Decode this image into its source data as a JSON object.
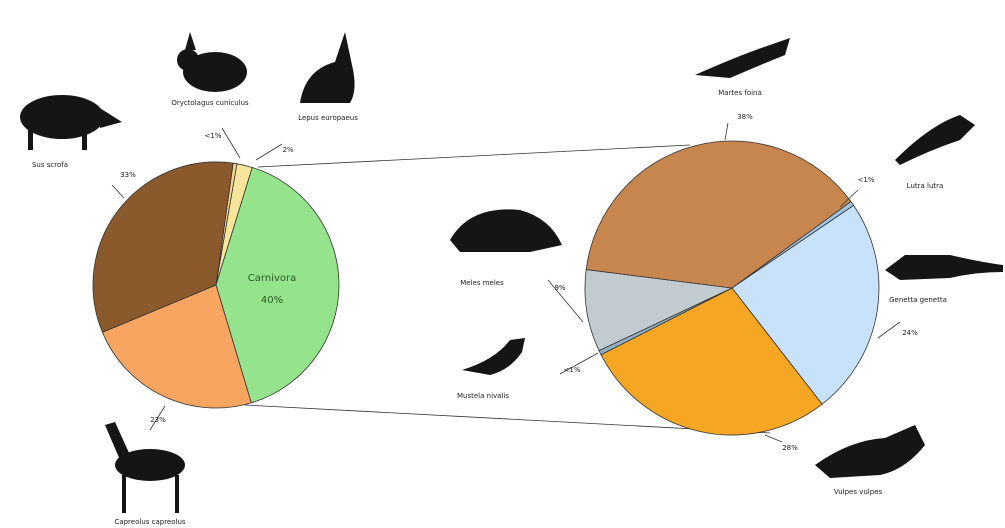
{
  "chart_data": [
    {
      "type": "pie",
      "categories": [
        "Oryctolagus cuniculus",
        "Lepus europaeus",
        "Carnivora",
        "Capreolus capreolus",
        "Sus scrofa"
      ],
      "values": [
        0.5,
        2,
        40,
        23,
        33
      ],
      "value_labels": [
        "<1%",
        "2%",
        "40%",
        "23%",
        "33%"
      ],
      "colors": [
        "#f3d58a",
        "#f7e59c",
        "#95e38c",
        "#f7a560",
        "#8a5a2c"
      ]
    },
    {
      "type": "pie",
      "categories": [
        "Lutra lutra",
        "Genetta genetta",
        "Vulpes vulpes",
        "Mustela nivalis",
        "Meles meles",
        "Martes foina"
      ],
      "values": [
        0.5,
        24,
        28,
        0.5,
        9,
        38
      ],
      "value_labels": [
        "<1%",
        "24%",
        "28%",
        "<1%",
        "9%",
        "38%"
      ],
      "colors": [
        "#9fc3e0",
        "#c8e2fb",
        "#f5a623",
        "#8fb0c4",
        "#c2ccd0",
        "#c8864f"
      ]
    }
  ]
}
